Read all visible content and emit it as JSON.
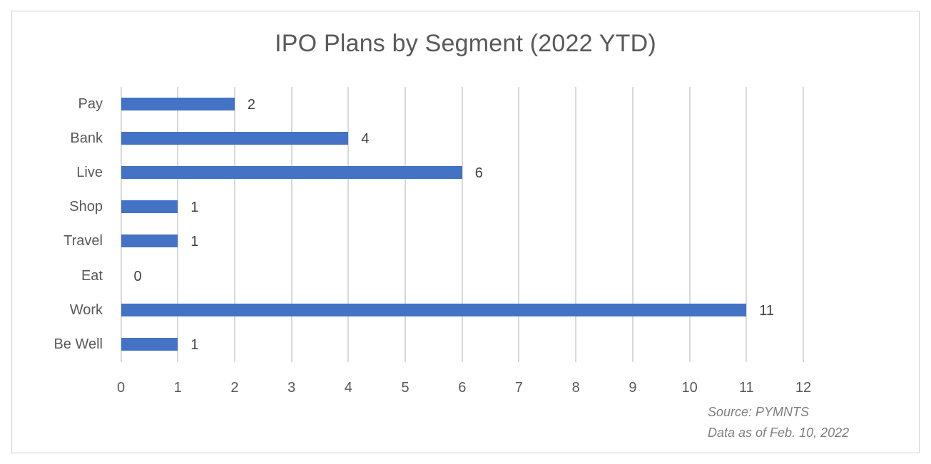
{
  "chart_data": {
    "type": "bar",
    "orientation": "horizontal",
    "title": "IPO Plans by Segment (2022 YTD)",
    "categories": [
      "Pay",
      "Bank",
      "Live",
      "Shop",
      "Travel",
      "Eat",
      "Work",
      "Be Well"
    ],
    "values": [
      2,
      4,
      6,
      1,
      1,
      0,
      11,
      1
    ],
    "xlabel": "",
    "ylabel": "",
    "xlim": [
      0,
      12
    ],
    "xticks": [
      "0",
      "1",
      "2",
      "3",
      "4",
      "5",
      "6",
      "7",
      "8",
      "9",
      "10",
      "11",
      "12"
    ],
    "grid": true,
    "legend": null,
    "data_labels": true,
    "bar_color": "#4472c4",
    "annotations": [
      "Source: PYMNTS",
      "Data as of Feb. 10, 2022"
    ]
  },
  "labels": {
    "title": "IPO Plans by Segment (2022 YTD)",
    "source": "Source: PYMNTS",
    "data_date": "Data as of Feb. 10, 2022"
  }
}
